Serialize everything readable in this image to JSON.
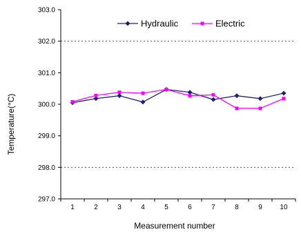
{
  "chart_data": {
    "type": "line",
    "categories": [
      "1",
      "2",
      "3",
      "4",
      "5",
      "6",
      "7",
      "8",
      "9",
      "10"
    ],
    "ylabel": "Temperature(°C)",
    "xlabel": "Measurement number",
    "ylim": [
      297.0,
      303.0
    ],
    "yticks": [
      297.0,
      298.0,
      299.0,
      300.0,
      301.0,
      302.0,
      303.0
    ],
    "ytick_labels": [
      "297.0",
      "298.0",
      "299.0",
      "300.0",
      "301.0",
      "302.0",
      "303.0"
    ],
    "gridlines_dashed_at": [
      298.0,
      302.0
    ],
    "legend_position": "top-center",
    "series": [
      {
        "name": "Hydraulic",
        "color": "#1f1f7a",
        "marker": "diamond",
        "values": [
          300.05,
          300.18,
          300.27,
          300.07,
          300.47,
          300.38,
          300.15,
          300.27,
          300.18,
          300.35
        ]
      },
      {
        "name": "Electric",
        "color": "#ff00ff",
        "marker": "square",
        "values": [
          300.08,
          300.28,
          300.38,
          300.35,
          300.47,
          300.27,
          300.3,
          299.87,
          299.87,
          300.18
        ]
      }
    ]
  }
}
